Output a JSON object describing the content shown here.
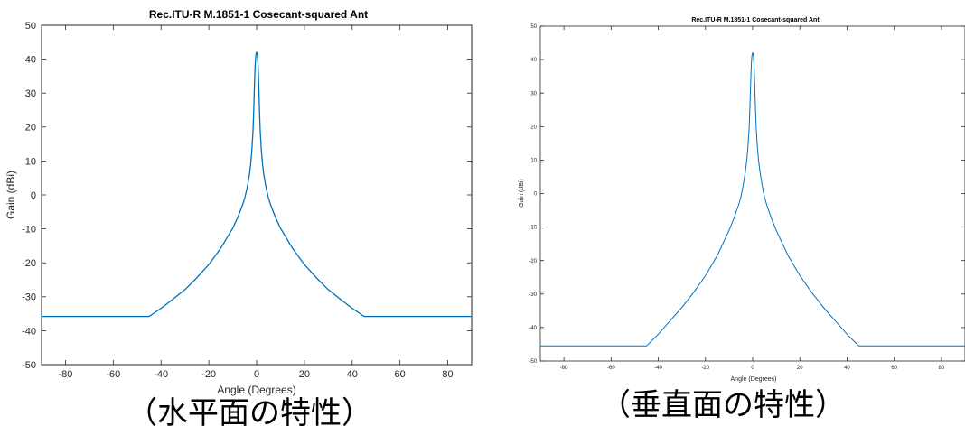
{
  "chart_data": [
    {
      "type": "line",
      "title": "Rec.ITU-R M.1851-1 Cosecant-squared Ant",
      "xlabel": "Angle (Degrees)",
      "ylabel": "Gain (dBi)",
      "xlim": [
        -90,
        90
      ],
      "ylim": [
        -50,
        50
      ],
      "xticks": [
        -80,
        -60,
        -40,
        -20,
        0,
        20,
        40,
        60,
        80
      ],
      "yticks": [
        -50,
        -40,
        -30,
        -20,
        -10,
        0,
        10,
        20,
        30,
        40,
        50
      ],
      "grid": false,
      "line_color": "#0072bd",
      "series": [
        {
          "x": [
            -90,
            -45,
            -40,
            -35,
            -30,
            -25,
            -20,
            -15,
            -10,
            -8,
            -6,
            -5,
            -4,
            -3,
            -2.5,
            -2,
            -1.5,
            -1.2,
            -1,
            -0.8,
            -0.6,
            -0.4,
            -0.2,
            0,
            0.2,
            0.4,
            0.6,
            0.8,
            1,
            1.2,
            1.5,
            2,
            2.5,
            3,
            4,
            5,
            6,
            8,
            10,
            15,
            20,
            25,
            30,
            35,
            40,
            45,
            90
          ],
          "y": [
            -35.8,
            -35.8,
            -33.4,
            -30.7,
            -27.9,
            -24.4,
            -20.5,
            -15.7,
            -9.8,
            -6.8,
            -3.2,
            -1.0,
            2.0,
            6.0,
            9.0,
            13.0,
            19.0,
            25.0,
            30.0,
            34.5,
            38.2,
            40.5,
            41.7,
            42.0,
            41.7,
            40.5,
            38.2,
            34.5,
            30.0,
            25.0,
            19.0,
            13.0,
            9.0,
            6.0,
            2.0,
            -1.0,
            -3.2,
            -6.8,
            -9.8,
            -15.7,
            -20.5,
            -24.4,
            -27.9,
            -30.7,
            -33.4,
            -35.8,
            -35.8
          ]
        }
      ]
    },
    {
      "type": "line",
      "title": "Rec.ITU-R M.1851-1 Cosecant-squared Ant",
      "xlabel": "Angle (Degrees)",
      "ylabel": "Gain (dBi)",
      "xlim": [
        -90,
        90
      ],
      "ylim": [
        -50,
        50
      ],
      "xticks": [
        -80,
        -60,
        -40,
        -20,
        0,
        20,
        40,
        60,
        80
      ],
      "yticks": [
        -50,
        -40,
        -30,
        -20,
        -10,
        0,
        10,
        20,
        30,
        40,
        50
      ],
      "grid": false,
      "line_color": "#0072bd",
      "series": [
        {
          "x": [
            -90,
            -45,
            -40,
            -35,
            -30,
            -25,
            -20,
            -15,
            -10,
            -8,
            -6,
            -5,
            -4,
            -3,
            -2.5,
            -2,
            -1.5,
            -1.2,
            -1,
            -0.8,
            -0.6,
            -0.4,
            -0.2,
            0,
            0.2,
            0.4,
            0.6,
            0.8,
            1,
            1.2,
            1.5,
            2,
            2.5,
            3,
            4,
            5,
            6,
            8,
            10,
            15,
            20,
            25,
            30,
            35,
            40,
            45,
            90
          ],
          "y": [
            -45.5,
            -45.5,
            -42.0,
            -38.0,
            -34.0,
            -29.5,
            -24.5,
            -18.5,
            -11.0,
            -7.5,
            -3.5,
            -1.0,
            2.5,
            7.0,
            10.0,
            14.0,
            19.5,
            25.0,
            29.5,
            34.0,
            38.0,
            40.5,
            41.7,
            42.0,
            41.7,
            40.5,
            38.0,
            34.0,
            29.5,
            25.0,
            19.5,
            14.0,
            10.0,
            7.0,
            2.5,
            -1.0,
            -3.5,
            -7.5,
            -11.0,
            -18.5,
            -24.5,
            -29.5,
            -34.0,
            -38.0,
            -42.0,
            -45.5,
            -45.5
          ]
        }
      ]
    }
  ],
  "captions": {
    "left": "（水平面の特性）",
    "right": "（垂直面の特性）"
  }
}
